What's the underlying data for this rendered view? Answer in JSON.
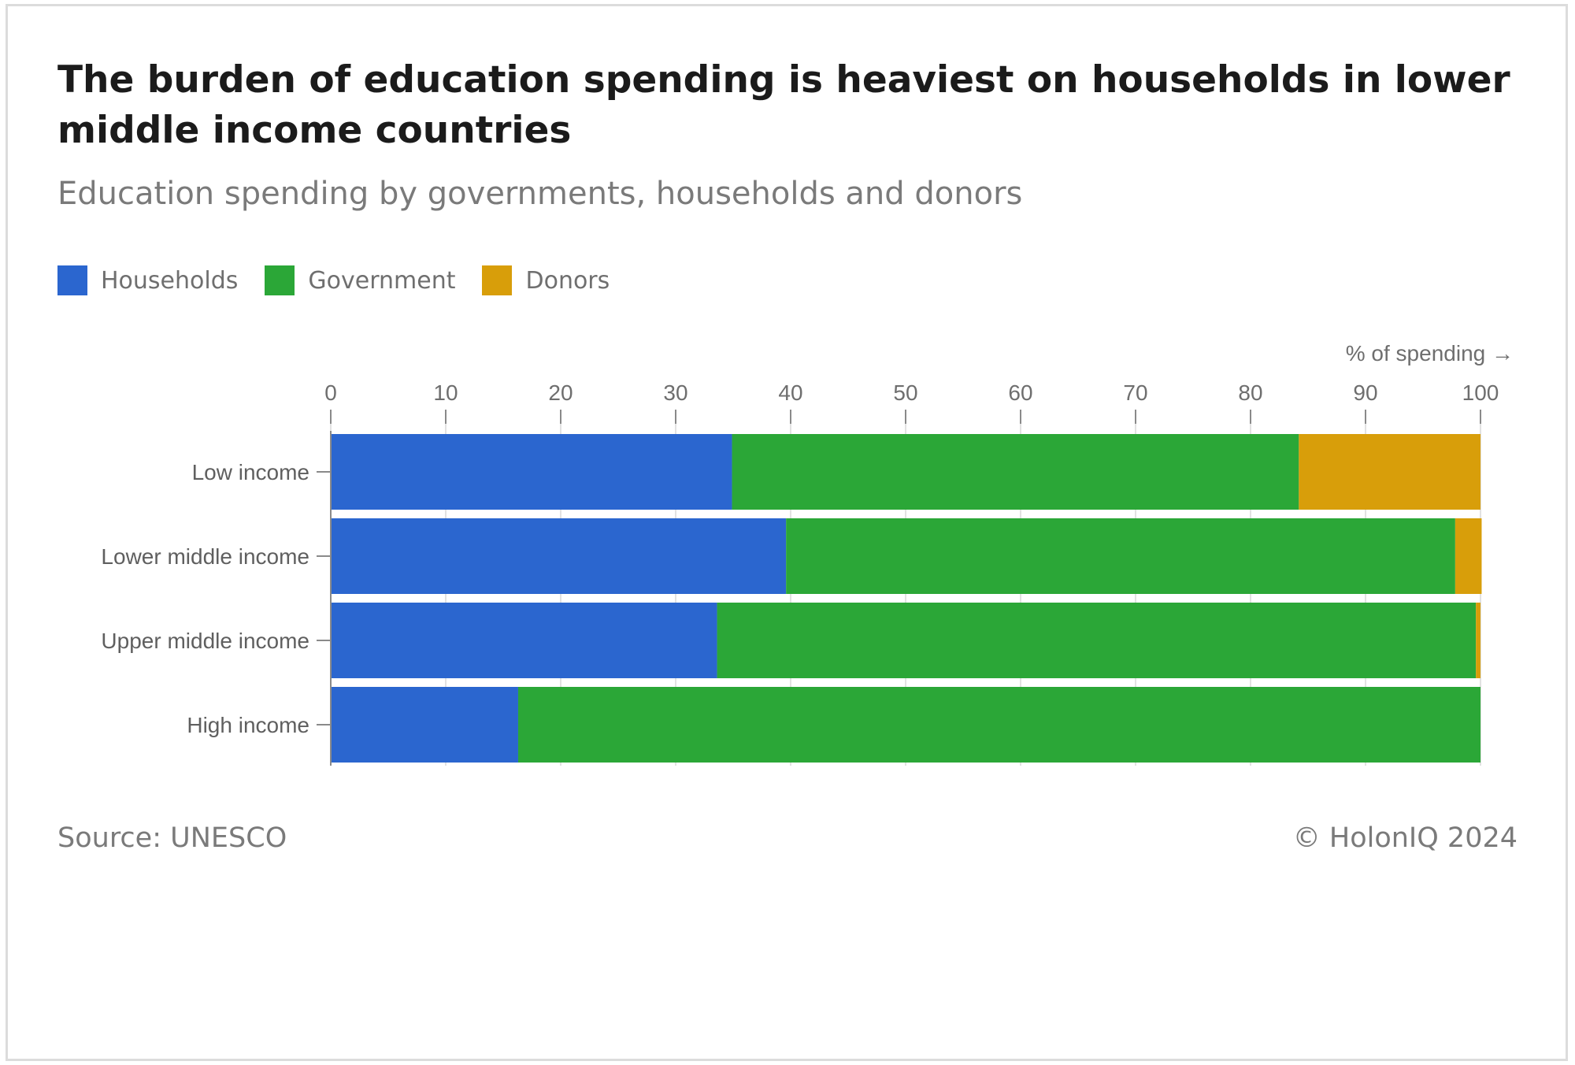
{
  "title": "The burden of education spending is heaviest on households in lower middle income countries",
  "subtitle": "Education spending by governments, households and donors",
  "footer": {
    "source": "Source: UNESCO",
    "copyright": "© HolonIQ 2024"
  },
  "colors": {
    "households": "#2b66cf",
    "government": "#2ba737",
    "donors": "#d89e0a",
    "grid": "#e2e2e2",
    "axis": "#8a8a8a"
  },
  "chart_data": {
    "type": "bar",
    "orientation": "horizontal",
    "stacked": true,
    "title": "The burden of education spending is heaviest on households in lower middle income countries",
    "subtitle": "Education spending by governments, households and donors",
    "xlabel": "% of spending →",
    "ylabel": "",
    "xlim": [
      0,
      100
    ],
    "xticks": [
      0,
      10,
      20,
      30,
      40,
      50,
      60,
      70,
      80,
      90,
      100
    ],
    "grid": true,
    "legend_position": "top-left",
    "categories": [
      "Low income",
      "Lower middle income",
      "Upper middle income",
      "High income"
    ],
    "series": [
      {
        "name": "Households",
        "color": "#2b66cf",
        "values": [
          34.9,
          39.6,
          33.6,
          16.3
        ]
      },
      {
        "name": "Government",
        "color": "#2ba737",
        "values": [
          49.3,
          58.2,
          66.0,
          83.7
        ]
      },
      {
        "name": "Donors",
        "color": "#d89e0a",
        "values": [
          15.8,
          2.3,
          0.4,
          0.0
        ]
      }
    ]
  }
}
